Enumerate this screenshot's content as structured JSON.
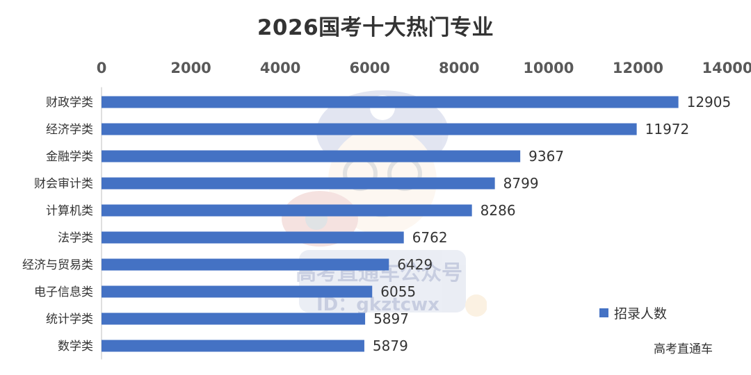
{
  "chart_data": {
    "type": "bar",
    "orientation": "horizontal",
    "title": "2026国考十大热门专业",
    "categories": [
      "财政学类",
      "经济学类",
      "金融学类",
      "财会审计类",
      "计算机类",
      "法学类",
      "经济与贸易类",
      "电子信息类",
      "统计学类",
      "数学类"
    ],
    "series": [
      {
        "name": "招录人数",
        "values": [
          12905,
          11972,
          9367,
          8799,
          8286,
          6762,
          6429,
          6055,
          5897,
          5879
        ]
      }
    ],
    "xlim": [
      0,
      14000
    ],
    "ticks": [
      0,
      2000,
      4000,
      6000,
      8000,
      10000,
      12000,
      14000
    ],
    "axis_position": "top",
    "grid": false,
    "legend_position": "bottom-right",
    "bar_color": "#4472c4",
    "data_labels": true
  },
  "source_label": "高考直通车",
  "watermark": {
    "line1": "高考直通车公众号",
    "line2": "ID：gkztcwx",
    "icon": "cartoon-mascot-icon"
  }
}
